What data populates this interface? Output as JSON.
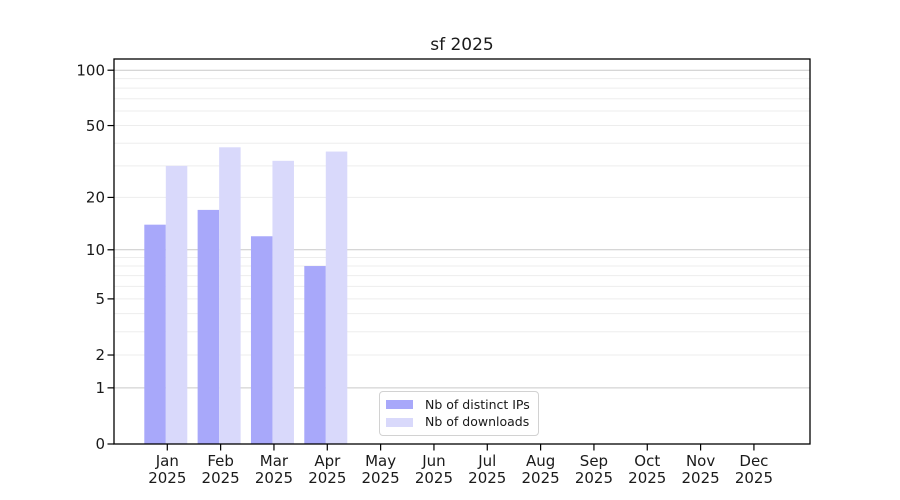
{
  "chart_data": {
    "type": "bar",
    "title": "sf 2025",
    "x_axis": {
      "categories": [
        "Jan",
        "Feb",
        "Mar",
        "Apr",
        "May",
        "Jun",
        "Jul",
        "Aug",
        "Sep",
        "Oct",
        "Nov",
        "Dec"
      ],
      "year_label": "2025"
    },
    "y_axis": {
      "scale": "log1p",
      "tick_labels": [
        "100",
        "50",
        "20",
        "10",
        "5",
        "2",
        "1",
        "0"
      ],
      "tick_values": [
        100,
        50,
        20,
        10,
        5,
        2,
        1,
        0
      ],
      "major_gridlines": [
        1,
        10,
        100
      ],
      "minor_gridlines": [
        2,
        3,
        4,
        5,
        6,
        7,
        8,
        9,
        20,
        30,
        40,
        50,
        60,
        70,
        80,
        90
      ],
      "top_value": 115,
      "ylim": [
        0,
        115
      ]
    },
    "series": [
      {
        "name": "Nb of distinct IPs",
        "color": "#a8a8fa",
        "values": [
          14,
          17,
          12,
          8,
          0,
          0,
          0,
          0,
          0,
          0,
          0,
          0
        ]
      },
      {
        "name": "Nb of downloads",
        "color": "#d9d9fb",
        "values": [
          30,
          38,
          32,
          36,
          0,
          0,
          0,
          0,
          0,
          0,
          0,
          0
        ]
      }
    ],
    "legend": {
      "position": "lower center"
    },
    "grid": "horizontal only",
    "colors": {
      "major_grid": "#c9c9c9",
      "minor_grid": "#ededed",
      "spine": "#000000",
      "text": "#1a1a1a",
      "legend_border": "#d2d2d2",
      "background": "#ffffff"
    }
  }
}
